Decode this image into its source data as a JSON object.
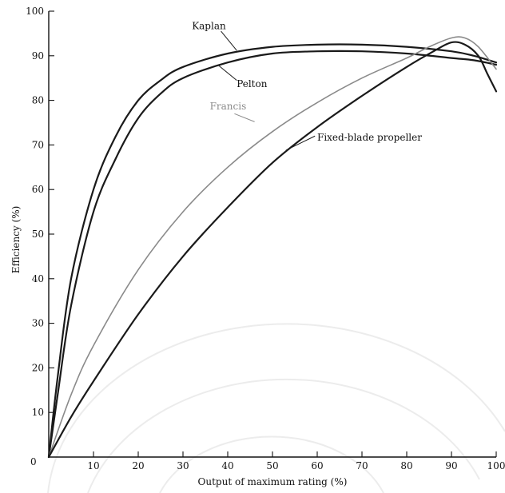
{
  "chart_data": {
    "type": "line",
    "title": "",
    "xlabel": "Output of maximum rating (%)",
    "ylabel": "Efficiency (%)",
    "xlim": [
      0,
      100
    ],
    "ylim": [
      0,
      100
    ],
    "xticks": [
      0,
      10,
      20,
      30,
      40,
      50,
      60,
      70,
      80,
      90,
      100
    ],
    "yticks": [
      10,
      20,
      30,
      40,
      50,
      60,
      70,
      80,
      90,
      100
    ],
    "grid": false,
    "legend": "none",
    "series": [
      {
        "name": "Kaplan",
        "color": "#1a1a1a",
        "points": [
          [
            0,
            0
          ],
          [
            2,
            18
          ],
          [
            5,
            40
          ],
          [
            10,
            60
          ],
          [
            15,
            72
          ],
          [
            20,
            80
          ],
          [
            25,
            84.5
          ],
          [
            30,
            87.5
          ],
          [
            40,
            90.5
          ],
          [
            50,
            92
          ],
          [
            60,
            92.5
          ],
          [
            70,
            92.5
          ],
          [
            80,
            92
          ],
          [
            90,
            91
          ],
          [
            95,
            90
          ],
          [
            100,
            88.5
          ]
        ]
      },
      {
        "name": "Pelton",
        "color": "#1a1a1a",
        "points": [
          [
            0,
            0
          ],
          [
            2,
            14
          ],
          [
            5,
            34
          ],
          [
            10,
            55
          ],
          [
            15,
            67
          ],
          [
            20,
            76
          ],
          [
            25,
            81.5
          ],
          [
            30,
            85
          ],
          [
            40,
            88.5
          ],
          [
            50,
            90.5
          ],
          [
            60,
            91
          ],
          [
            70,
            91
          ],
          [
            80,
            90.5
          ],
          [
            90,
            89.5
          ],
          [
            95,
            89
          ],
          [
            100,
            88
          ]
        ]
      },
      {
        "name": "Francis",
        "color": "#8a8a8a",
        "points": [
          [
            0,
            0
          ],
          [
            5,
            14
          ],
          [
            10,
            25
          ],
          [
            20,
            42
          ],
          [
            30,
            55
          ],
          [
            40,
            65
          ],
          [
            50,
            73
          ],
          [
            60,
            79.5
          ],
          [
            70,
            85
          ],
          [
            80,
            89.5
          ],
          [
            85,
            92
          ],
          [
            90,
            94
          ],
          [
            93,
            94
          ],
          [
            96,
            92
          ],
          [
            100,
            87
          ]
        ]
      },
      {
        "name": "Fixed-blade propeller",
        "color": "#1a1a1a",
        "points": [
          [
            0,
            0
          ],
          [
            5,
            9
          ],
          [
            10,
            17
          ],
          [
            20,
            32
          ],
          [
            30,
            45
          ],
          [
            40,
            56
          ],
          [
            50,
            66
          ],
          [
            60,
            74
          ],
          [
            70,
            81
          ],
          [
            80,
            87.5
          ],
          [
            86,
            91
          ],
          [
            90,
            93
          ],
          [
            93,
            92.5
          ],
          [
            96,
            90
          ],
          [
            98,
            86
          ],
          [
            100,
            82
          ]
        ]
      }
    ],
    "annotations": [
      {
        "text": "Kaplan",
        "at": [
          32,
          96
        ]
      },
      {
        "text": "Pelton",
        "at": [
          42,
          83
        ]
      },
      {
        "text": "Francis",
        "at": [
          36,
          78
        ]
      },
      {
        "text": "Fixed-blade propeller",
        "at": [
          60,
          71
        ]
      }
    ]
  }
}
